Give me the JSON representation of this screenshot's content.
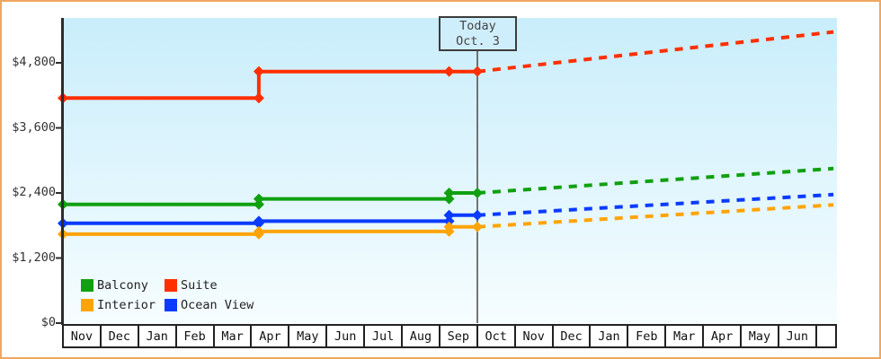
{
  "page": {
    "border_color": "#efa75f"
  },
  "legend": {
    "items": [
      {
        "label": "Balcony",
        "color": "#10a010"
      },
      {
        "label": "Suite",
        "color": "#ff2f00"
      },
      {
        "label": "Interior",
        "color": "#ffa408"
      },
      {
        "label": "Ocean View",
        "color": "#0a3bff"
      }
    ]
  },
  "chart_data": {
    "type": "line",
    "title": "",
    "xlabel": "",
    "ylabel": "",
    "ylim": [
      0,
      5000
    ],
    "grid": false,
    "legend_position": "bottom-left",
    "y_ticks": [
      {
        "label": "$0",
        "value": 0
      },
      {
        "label": "$1,200",
        "value": 1200
      },
      {
        "label": "$2,400",
        "value": 2400
      },
      {
        "label": "$3,600",
        "value": 3600
      },
      {
        "label": "$4,800",
        "value": 4800
      }
    ],
    "x_categories": [
      "Nov",
      "Dec",
      "Jan",
      "Feb",
      "Mar",
      "Apr",
      "May",
      "Jun",
      "Jul",
      "Aug",
      "Sep",
      "Oct",
      "Nov",
      "Dec",
      "Jan",
      "Feb",
      "Mar",
      "Apr",
      "May",
      "Jun"
    ],
    "today": {
      "label_line1": "Today",
      "label_line2": "Oct. 3",
      "slot": 11
    },
    "series": [
      {
        "name": "Suite",
        "color": "#ff2f00",
        "history": [
          [
            0,
            4150
          ],
          [
            5.2,
            4150
          ],
          [
            5.2,
            4640
          ],
          [
            10.25,
            4640
          ],
          [
            11,
            4640
          ]
        ],
        "forecast_end": [
          20.45,
          5370
        ]
      },
      {
        "name": "Balcony",
        "color": "#10a010",
        "history": [
          [
            0,
            2190
          ],
          [
            5.2,
            2190
          ],
          [
            5.2,
            2290
          ],
          [
            10.25,
            2290
          ],
          [
            10.25,
            2400
          ],
          [
            11,
            2400
          ]
        ],
        "forecast_end": [
          20.45,
          2850
        ]
      },
      {
        "name": "Ocean View",
        "color": "#0a3bff",
        "history": [
          [
            0,
            1840
          ],
          [
            5.2,
            1840
          ],
          [
            5.2,
            1880
          ],
          [
            10.25,
            1880
          ],
          [
            10.25,
            1990
          ],
          [
            11,
            1990
          ]
        ],
        "forecast_end": [
          20.45,
          2370
        ]
      },
      {
        "name": "Interior",
        "color": "#ffa408",
        "history": [
          [
            0,
            1640
          ],
          [
            5.2,
            1640
          ],
          [
            5.2,
            1690
          ],
          [
            10.25,
            1690
          ],
          [
            10.25,
            1775
          ],
          [
            11,
            1775
          ]
        ],
        "forecast_end": [
          20.45,
          2180
        ]
      }
    ]
  }
}
